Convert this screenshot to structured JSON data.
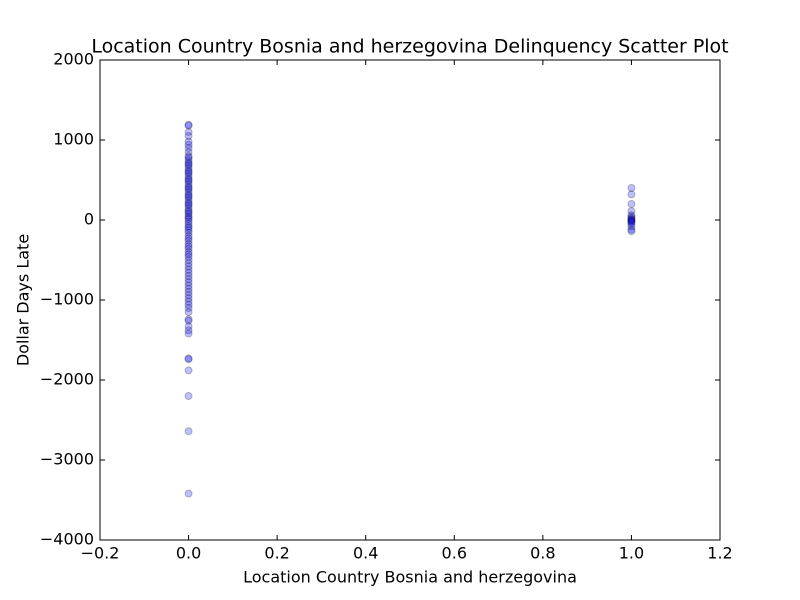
{
  "chart_data": {
    "type": "scatter",
    "title": "Location Country Bosnia and herzegovina Delinquency Scatter Plot",
    "x_label": "Location Country Bosnia and herzegovina",
    "y_label": "Dollar Days Late",
    "color": "#0000ff",
    "alpha": 0.25,
    "xlim": [
      -0.2,
      1.2
    ],
    "ylim": [
      -4000,
      2000
    ],
    "xticks": [
      {
        "value": -0.2,
        "label": "−0.2"
      },
      {
        "value": 0,
        "label": "0.0"
      },
      {
        "value": 0.2,
        "label": "0.2"
      },
      {
        "value": 0.4,
        "label": "0.4"
      },
      {
        "value": 0.6,
        "label": "0.6"
      },
      {
        "value": 0.8,
        "label": "0.8"
      },
      {
        "value": 1,
        "label": "1.0"
      },
      {
        "value": 1.2,
        "label": "1.2"
      }
    ],
    "yticks": [
      {
        "value": -4000,
        "label": "−4000"
      },
      {
        "value": -3000,
        "label": "−3000"
      },
      {
        "value": -2000,
        "label": "−2000"
      },
      {
        "value": -1000,
        "label": "−1000"
      },
      0,
      1000,
      2000
    ],
    "x": [
      0,
      0,
      0,
      0,
      0,
      0,
      0,
      0,
      0,
      0,
      0,
      0,
      0,
      0,
      0,
      0,
      0,
      0,
      0,
      0,
      0,
      0,
      0,
      0,
      0,
      0,
      0,
      0,
      0,
      0,
      0,
      0,
      0,
      0,
      0,
      0,
      0,
      0,
      0,
      0,
      0,
      0,
      0,
      0,
      0,
      0,
      0,
      0,
      0,
      0,
      0,
      0,
      0,
      0,
      0,
      0,
      0,
      0,
      0,
      0,
      0,
      0,
      0,
      0,
      0,
      0,
      0,
      0,
      0,
      0,
      0,
      0,
      0,
      0,
      0,
      0,
      0,
      0,
      0,
      0,
      0,
      0,
      0,
      0,
      1,
      1,
      1,
      1,
      1,
      1,
      1,
      1,
      1,
      1,
      1,
      1,
      1,
      1,
      1,
      1
    ],
    "y": [
      1190,
      1180,
      1100,
      1050,
      980,
      940,
      900,
      850,
      800,
      780,
      750,
      720,
      700,
      680,
      650,
      620,
      600,
      580,
      550,
      520,
      500,
      480,
      450,
      420,
      400,
      380,
      350,
      320,
      300,
      280,
      250,
      220,
      200,
      180,
      150,
      120,
      100,
      80,
      50,
      30,
      10,
      -20,
      -50,
      -80,
      -100,
      -130,
      -160,
      -200,
      -230,
      -260,
      -300,
      -330,
      -360,
      -400,
      -430,
      -460,
      -500,
      -540,
      -580,
      -620,
      -660,
      -700,
      -740,
      -780,
      -820,
      -860,
      -900,
      -940,
      -980,
      -1020,
      -1060,
      -1100,
      -1150,
      -1240,
      -1260,
      -1330,
      -1380,
      -1420,
      -1730,
      -1740,
      -1880,
      -2200,
      -2640,
      -3420,
      400,
      320,
      200,
      110,
      60,
      40,
      20,
      10,
      0,
      -10,
      -20,
      -30,
      -50,
      -80,
      -120,
      -140
    ]
  }
}
